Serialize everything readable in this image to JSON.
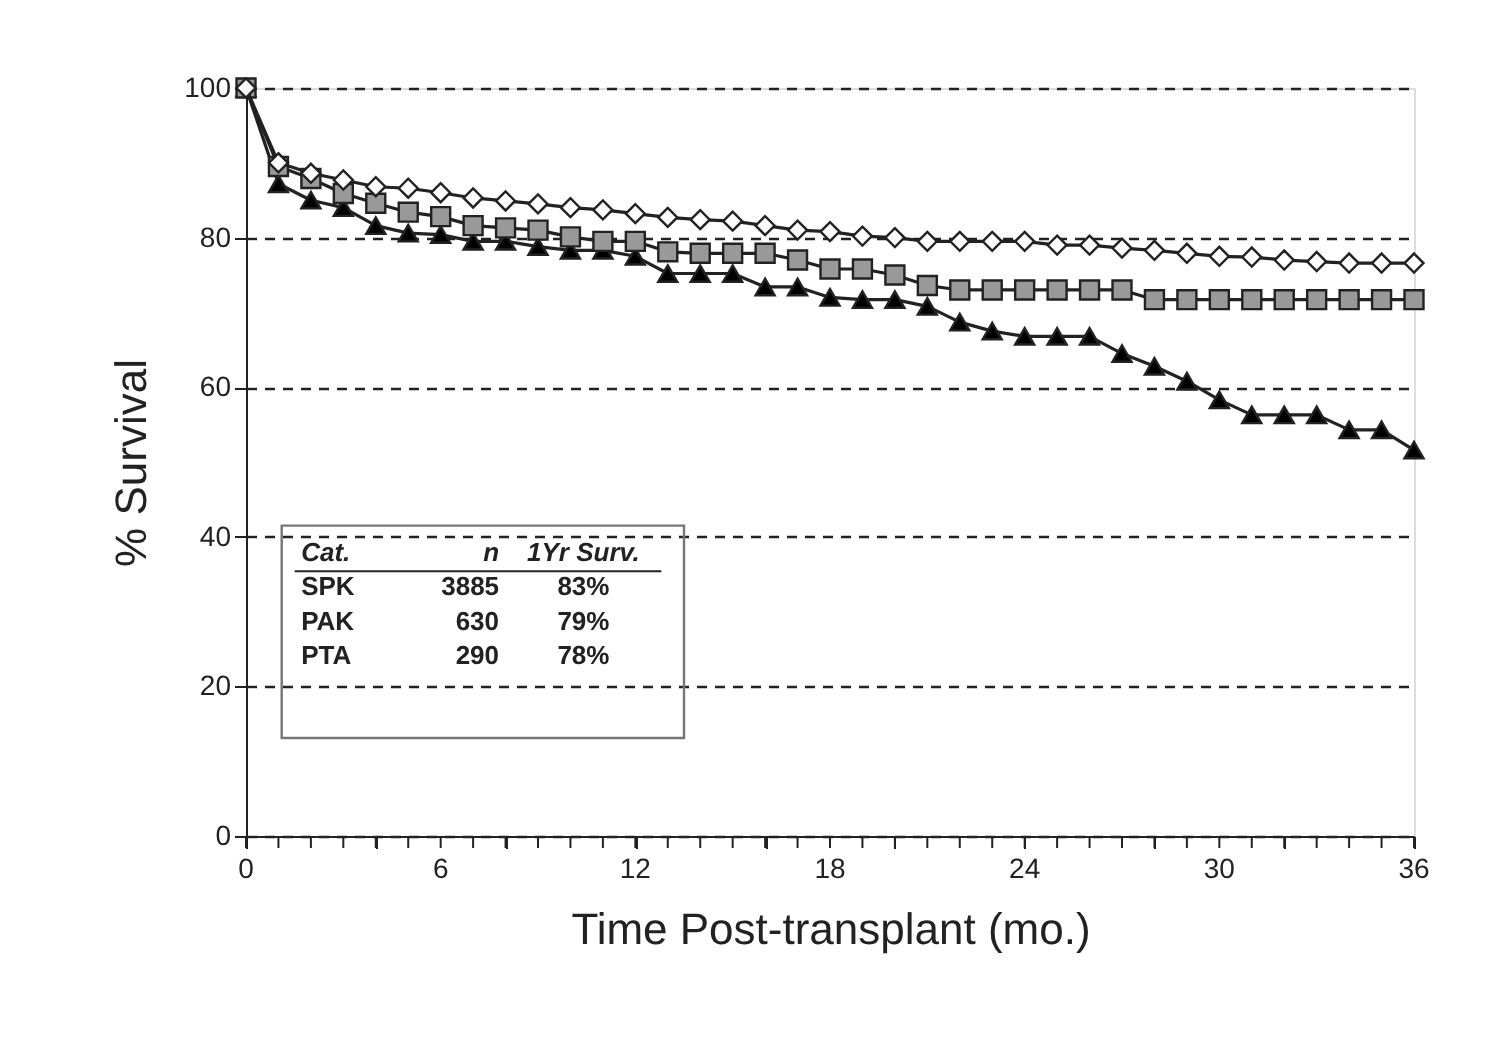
{
  "chart_data": {
    "type": "line",
    "xlabel": "Time Post-transplant (mo.)",
    "ylabel": "% Survival",
    "x": [
      0,
      1,
      2,
      3,
      4,
      5,
      6,
      7,
      8,
      9,
      10,
      11,
      12,
      13,
      14,
      15,
      16,
      17,
      18,
      19,
      20,
      21,
      22,
      23,
      24,
      25,
      26,
      27,
      28,
      29,
      30,
      31,
      32,
      33,
      34,
      35,
      36
    ],
    "series": [
      {
        "color": "#ffffff",
        "marker": "diamond",
        "values": [
          100,
          90,
          88.6,
          87.7,
          86.8,
          86.6,
          86,
          85.3,
          84.9,
          84.5,
          84,
          83.7,
          83.2,
          82.7,
          82.4,
          82.2,
          81.6,
          81,
          80.8,
          80.2,
          80,
          79.5,
          79.5,
          79.5,
          79.5,
          79,
          79,
          78.6,
          78.3,
          77.9,
          77.5,
          77.4,
          77,
          76.8,
          76.6,
          76.6,
          76.6
        ]
      },
      {
        "color": "#999999",
        "marker": "square",
        "values": [
          100,
          89.5,
          87.9,
          85.9,
          84.6,
          83.4,
          82.8,
          81.6,
          81.3,
          81,
          80.1,
          79.5,
          79.5,
          78.1,
          77.9,
          77.9,
          77.9,
          77,
          75.8,
          75.8,
          75,
          73.6,
          73,
          73,
          73,
          73,
          73,
          73,
          71.7,
          71.7,
          71.7,
          71.7,
          71.7,
          71.7,
          71.7,
          71.7,
          71.7
        ]
      },
      {
        "color": "#000000",
        "marker": "triangle",
        "values": [
          100,
          87.2,
          85,
          84,
          81.6,
          80.6,
          80.4,
          79.5,
          79.5,
          78.8,
          78.3,
          78.3,
          77.5,
          75.2,
          75.2,
          75.2,
          73.4,
          73.4,
          72,
          71.7,
          71.7,
          70.8,
          68.7,
          67.5,
          66.8,
          66.8,
          66.8,
          64.5,
          62.8,
          60.8,
          58.3,
          56.3,
          56.3,
          56.3,
          54.3,
          54.3,
          51.6
        ]
      }
    ],
    "xlim": [
      0,
      36
    ],
    "ylim": [
      0,
      100
    ],
    "xticks": [
      0,
      {
        "value": 1,
        "label": null
      },
      {
        "value": 2,
        "label": null
      },
      {
        "value": 3,
        "label": null
      },
      {
        "value": 4,
        "label": null
      },
      {
        "value": 5,
        "label": null
      },
      6,
      {
        "value": 7,
        "label": null
      },
      {
        "value": 8,
        "label": null
      },
      {
        "value": 9,
        "label": null
      },
      {
        "value": 10,
        "label": null
      },
      {
        "value": 11,
        "label": null
      },
      12,
      {
        "value": 13,
        "label": null
      },
      {
        "value": 14,
        "label": null
      },
      {
        "value": 15,
        "label": null
      },
      {
        "value": 16,
        "label": null
      },
      {
        "value": 17,
        "label": null
      },
      18,
      {
        "value": 19,
        "label": null
      },
      {
        "value": 20,
        "label": null
      },
      {
        "value": 21,
        "label": null
      },
      {
        "value": 22,
        "label": null
      },
      {
        "value": 23,
        "label": null
      },
      24,
      {
        "value": 25,
        "label": null
      },
      {
        "value": 26,
        "label": null
      },
      {
        "value": 27,
        "label": null
      },
      {
        "value": 28,
        "label": null
      },
      {
        "value": 29,
        "label": null
      },
      30,
      {
        "value": 31,
        "label": null
      },
      {
        "value": 32,
        "label": null
      },
      {
        "value": 33,
        "label": null
      },
      {
        "value": 34,
        "label": null
      },
      {
        "value": 35,
        "label": null
      },
      36
    ],
    "yticks": [
      0,
      20,
      40,
      60,
      80,
      100
    ],
    "grid": "y",
    "legend": false,
    "line_style": "solid",
    "annotations": [
      "Cat.",
      "n",
      "1Yr Surv.",
      "SPK",
      "3885",
      "83%",
      "PAK",
      "630",
      "79%",
      "PTA",
      "290",
      "78%"
    ]
  }
}
